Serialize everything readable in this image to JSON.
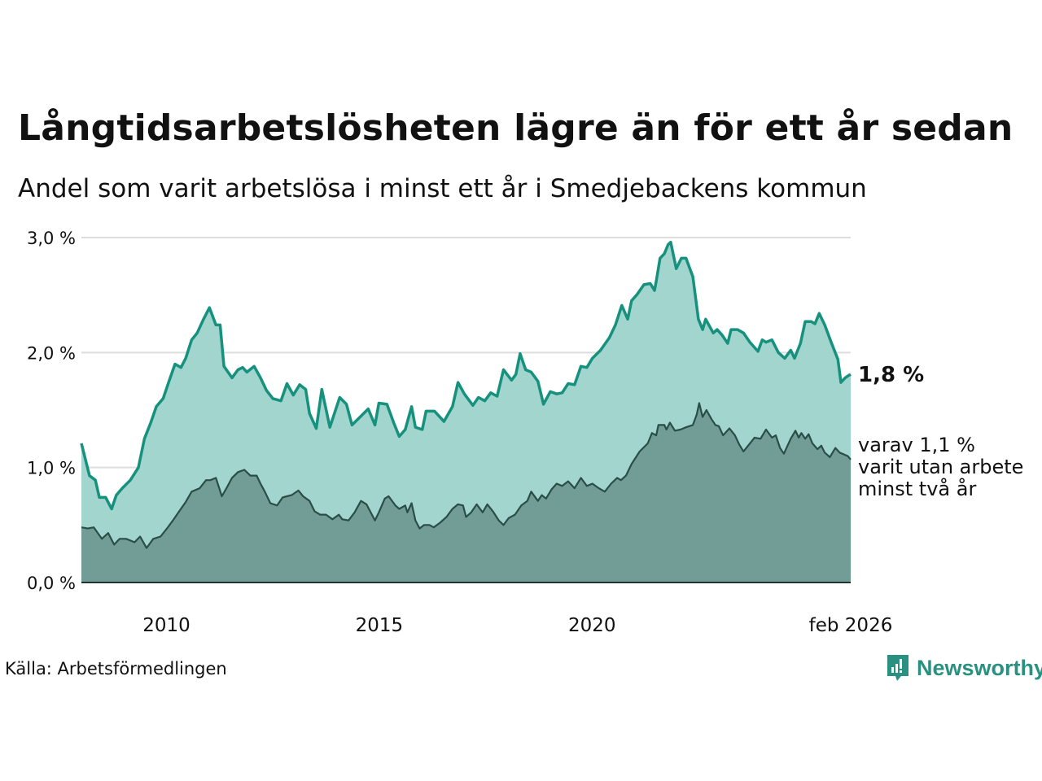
{
  "header": {
    "title": "Långtidsarbetslösheten lägre än för ett år sedan",
    "subtitle": "Andel som varit arbetslösa i minst ett år i Smedjebackens kommun"
  },
  "footer": {
    "source": "Källa: Arbetsförmedlingen",
    "logo_text": "Newsworthy"
  },
  "colors": {
    "total_line": "#16917d",
    "total_fill": "#a3d5cf",
    "long_line": "#2b4d48",
    "long_fill": "#729d97",
    "grid": "#dddddd"
  },
  "chart_data": {
    "type": "area",
    "title": "Långtidsarbetslösheten lägre än för ett år sedan",
    "xlabel": "",
    "ylabel": "",
    "xlim": [
      2008.0,
      2026.08
    ],
    "ylim": [
      0,
      3
    ],
    "yticks": [
      {
        "v": 0,
        "label": "0,0 %"
      },
      {
        "v": 1,
        "label": "1,0 %"
      },
      {
        "v": 2,
        "label": "2,0 %"
      },
      {
        "v": 3,
        "label": "3,0 %"
      }
    ],
    "xticks": [
      {
        "v": 2010,
        "label": "2010"
      },
      {
        "v": 2015,
        "label": "2015"
      },
      {
        "v": 2020,
        "label": "2020"
      },
      {
        "v": 2026.08,
        "label": "feb 2026"
      }
    ],
    "grid": true,
    "annotations": {
      "total_last": "1,8 %",
      "long_line1": "varav 1,1 %",
      "long_line2": "varit utan arbete",
      "long_line3": "minst två år"
    },
    "series": [
      {
        "name": "Arbetslösa minst ett år",
        "points": [
          [
            2008.0,
            1.21
          ],
          [
            2008.19,
            0.93
          ],
          [
            2008.33,
            0.89
          ],
          [
            2008.42,
            0.74
          ],
          [
            2008.57,
            0.74
          ],
          [
            2008.71,
            0.64
          ],
          [
            2008.82,
            0.76
          ],
          [
            2008.96,
            0.82
          ],
          [
            2009.15,
            0.89
          ],
          [
            2009.34,
            1.0
          ],
          [
            2009.48,
            1.25
          ],
          [
            2009.63,
            1.39
          ],
          [
            2009.76,
            1.53
          ],
          [
            2009.92,
            1.6
          ],
          [
            2010.05,
            1.74
          ],
          [
            2010.2,
            1.9
          ],
          [
            2010.34,
            1.87
          ],
          [
            2010.45,
            1.95
          ],
          [
            2010.59,
            2.11
          ],
          [
            2010.72,
            2.17
          ],
          [
            2010.87,
            2.29
          ],
          [
            2011.01,
            2.39
          ],
          [
            2011.16,
            2.24
          ],
          [
            2011.26,
            2.24
          ],
          [
            2011.35,
            1.88
          ],
          [
            2011.54,
            1.78
          ],
          [
            2011.68,
            1.85
          ],
          [
            2011.79,
            1.87
          ],
          [
            2011.89,
            1.83
          ],
          [
            2012.06,
            1.88
          ],
          [
            2012.21,
            1.78
          ],
          [
            2012.35,
            1.67
          ],
          [
            2012.5,
            1.6
          ],
          [
            2012.69,
            1.58
          ],
          [
            2012.83,
            1.73
          ],
          [
            2012.98,
            1.63
          ],
          [
            2013.13,
            1.72
          ],
          [
            2013.27,
            1.68
          ],
          [
            2013.36,
            1.47
          ],
          [
            2013.52,
            1.34
          ],
          [
            2013.65,
            1.68
          ],
          [
            2013.84,
            1.35
          ],
          [
            2014.07,
            1.61
          ],
          [
            2014.23,
            1.55
          ],
          [
            2014.36,
            1.37
          ],
          [
            2014.55,
            1.44
          ],
          [
            2014.74,
            1.51
          ],
          [
            2014.9,
            1.37
          ],
          [
            2014.99,
            1.56
          ],
          [
            2015.18,
            1.55
          ],
          [
            2015.34,
            1.39
          ],
          [
            2015.47,
            1.27
          ],
          [
            2015.61,
            1.33
          ],
          [
            2015.76,
            1.53
          ],
          [
            2015.85,
            1.35
          ],
          [
            2016.01,
            1.33
          ],
          [
            2016.1,
            1.49
          ],
          [
            2016.3,
            1.49
          ],
          [
            2016.52,
            1.4
          ],
          [
            2016.72,
            1.53
          ],
          [
            2016.85,
            1.74
          ],
          [
            2017.0,
            1.64
          ],
          [
            2017.2,
            1.54
          ],
          [
            2017.33,
            1.61
          ],
          [
            2017.48,
            1.58
          ],
          [
            2017.62,
            1.65
          ],
          [
            2017.77,
            1.62
          ],
          [
            2017.92,
            1.85
          ],
          [
            2018.11,
            1.76
          ],
          [
            2018.21,
            1.81
          ],
          [
            2018.31,
            1.99
          ],
          [
            2018.44,
            1.85
          ],
          [
            2018.57,
            1.83
          ],
          [
            2018.73,
            1.75
          ],
          [
            2018.86,
            1.55
          ],
          [
            2019.02,
            1.66
          ],
          [
            2019.17,
            1.64
          ],
          [
            2019.3,
            1.65
          ],
          [
            2019.44,
            1.73
          ],
          [
            2019.59,
            1.72
          ],
          [
            2019.74,
            1.88
          ],
          [
            2019.88,
            1.87
          ],
          [
            2020.01,
            1.95
          ],
          [
            2020.2,
            2.02
          ],
          [
            2020.41,
            2.13
          ],
          [
            2020.55,
            2.24
          ],
          [
            2020.7,
            2.41
          ],
          [
            2020.84,
            2.29
          ],
          [
            2020.93,
            2.45
          ],
          [
            2021.07,
            2.51
          ],
          [
            2021.22,
            2.59
          ],
          [
            2021.37,
            2.6
          ],
          [
            2021.47,
            2.54
          ],
          [
            2021.51,
            2.62
          ],
          [
            2021.6,
            2.82
          ],
          [
            2021.7,
            2.86
          ],
          [
            2021.79,
            2.94
          ],
          [
            2021.85,
            2.96
          ],
          [
            2021.98,
            2.73
          ],
          [
            2022.1,
            2.82
          ],
          [
            2022.21,
            2.82
          ],
          [
            2022.37,
            2.66
          ],
          [
            2022.5,
            2.29
          ],
          [
            2022.6,
            2.2
          ],
          [
            2022.67,
            2.29
          ],
          [
            2022.85,
            2.17
          ],
          [
            2022.94,
            2.2
          ],
          [
            2023.06,
            2.15
          ],
          [
            2023.19,
            2.08
          ],
          [
            2023.27,
            2.2
          ],
          [
            2023.42,
            2.2
          ],
          [
            2023.56,
            2.17
          ],
          [
            2023.71,
            2.09
          ],
          [
            2023.9,
            2.01
          ],
          [
            2024.0,
            2.11
          ],
          [
            2024.09,
            2.09
          ],
          [
            2024.23,
            2.11
          ],
          [
            2024.38,
            2.0
          ],
          [
            2024.53,
            1.95
          ],
          [
            2024.67,
            2.02
          ],
          [
            2024.76,
            1.95
          ],
          [
            2024.9,
            2.08
          ],
          [
            2025.01,
            2.27
          ],
          [
            2025.15,
            2.27
          ],
          [
            2025.24,
            2.25
          ],
          [
            2025.34,
            2.34
          ],
          [
            2025.47,
            2.24
          ],
          [
            2025.62,
            2.09
          ],
          [
            2025.78,
            1.94
          ],
          [
            2025.85,
            1.74
          ],
          [
            2025.95,
            1.78
          ],
          [
            2026.03,
            1.8
          ],
          [
            2026.08,
            1.81
          ]
        ]
      },
      {
        "name": "varav minst två år",
        "points": [
          [
            2008.0,
            0.48
          ],
          [
            2008.15,
            0.47
          ],
          [
            2008.29,
            0.48
          ],
          [
            2008.48,
            0.38
          ],
          [
            2008.63,
            0.43
          ],
          [
            2008.77,
            0.33
          ],
          [
            2008.9,
            0.38
          ],
          [
            2009.05,
            0.38
          ],
          [
            2009.25,
            0.35
          ],
          [
            2009.38,
            0.4
          ],
          [
            2009.53,
            0.3
          ],
          [
            2009.69,
            0.38
          ],
          [
            2009.86,
            0.4
          ],
          [
            2010.01,
            0.47
          ],
          [
            2010.15,
            0.54
          ],
          [
            2010.3,
            0.62
          ],
          [
            2010.45,
            0.7
          ],
          [
            2010.59,
            0.79
          ],
          [
            2010.78,
            0.82
          ],
          [
            2010.93,
            0.89
          ],
          [
            2011.03,
            0.89
          ],
          [
            2011.16,
            0.91
          ],
          [
            2011.3,
            0.75
          ],
          [
            2011.41,
            0.82
          ],
          [
            2011.54,
            0.91
          ],
          [
            2011.68,
            0.96
          ],
          [
            2011.83,
            0.98
          ],
          [
            2011.97,
            0.93
          ],
          [
            2012.12,
            0.93
          ],
          [
            2012.21,
            0.86
          ],
          [
            2012.31,
            0.79
          ],
          [
            2012.44,
            0.69
          ],
          [
            2012.6,
            0.67
          ],
          [
            2012.73,
            0.74
          ],
          [
            2012.83,
            0.75
          ],
          [
            2012.94,
            0.76
          ],
          [
            2013.1,
            0.8
          ],
          [
            2013.21,
            0.75
          ],
          [
            2013.36,
            0.71
          ],
          [
            2013.48,
            0.62
          ],
          [
            2013.61,
            0.59
          ],
          [
            2013.75,
            0.59
          ],
          [
            2013.9,
            0.55
          ],
          [
            2014.05,
            0.59
          ],
          [
            2014.13,
            0.55
          ],
          [
            2014.28,
            0.54
          ],
          [
            2014.42,
            0.61
          ],
          [
            2014.57,
            0.71
          ],
          [
            2014.7,
            0.68
          ],
          [
            2014.9,
            0.54
          ],
          [
            2014.99,
            0.61
          ],
          [
            2015.13,
            0.73
          ],
          [
            2015.22,
            0.75
          ],
          [
            2015.38,
            0.67
          ],
          [
            2015.47,
            0.64
          ],
          [
            2015.61,
            0.67
          ],
          [
            2015.66,
            0.61
          ],
          [
            2015.76,
            0.69
          ],
          [
            2015.85,
            0.54
          ],
          [
            2015.95,
            0.47
          ],
          [
            2016.05,
            0.5
          ],
          [
            2016.18,
            0.5
          ],
          [
            2016.28,
            0.48
          ],
          [
            2016.43,
            0.52
          ],
          [
            2016.58,
            0.57
          ],
          [
            2016.72,
            0.64
          ],
          [
            2016.85,
            0.68
          ],
          [
            2016.97,
            0.67
          ],
          [
            2017.04,
            0.57
          ],
          [
            2017.16,
            0.61
          ],
          [
            2017.29,
            0.68
          ],
          [
            2017.43,
            0.61
          ],
          [
            2017.54,
            0.68
          ],
          [
            2017.67,
            0.62
          ],
          [
            2017.81,
            0.54
          ],
          [
            2017.92,
            0.5
          ],
          [
            2018.04,
            0.56
          ],
          [
            2018.19,
            0.59
          ],
          [
            2018.34,
            0.67
          ],
          [
            2018.48,
            0.71
          ],
          [
            2018.57,
            0.79
          ],
          [
            2018.73,
            0.71
          ],
          [
            2018.82,
            0.76
          ],
          [
            2018.92,
            0.73
          ],
          [
            2019.05,
            0.81
          ],
          [
            2019.17,
            0.86
          ],
          [
            2019.3,
            0.84
          ],
          [
            2019.44,
            0.88
          ],
          [
            2019.59,
            0.82
          ],
          [
            2019.74,
            0.91
          ],
          [
            2019.88,
            0.84
          ],
          [
            2020.01,
            0.86
          ],
          [
            2020.16,
            0.82
          ],
          [
            2020.3,
            0.79
          ],
          [
            2020.45,
            0.86
          ],
          [
            2020.59,
            0.91
          ],
          [
            2020.68,
            0.89
          ],
          [
            2020.8,
            0.93
          ],
          [
            2020.93,
            1.03
          ],
          [
            2021.12,
            1.14
          ],
          [
            2021.31,
            1.21
          ],
          [
            2021.41,
            1.3
          ],
          [
            2021.51,
            1.28
          ],
          [
            2021.56,
            1.37
          ],
          [
            2021.7,
            1.37
          ],
          [
            2021.75,
            1.33
          ],
          [
            2021.83,
            1.39
          ],
          [
            2021.95,
            1.32
          ],
          [
            2022.08,
            1.33
          ],
          [
            2022.21,
            1.35
          ],
          [
            2022.37,
            1.37
          ],
          [
            2022.46,
            1.46
          ],
          [
            2022.52,
            1.56
          ],
          [
            2022.6,
            1.44
          ],
          [
            2022.69,
            1.5
          ],
          [
            2022.81,
            1.42
          ],
          [
            2022.9,
            1.37
          ],
          [
            2022.98,
            1.36
          ],
          [
            2023.08,
            1.28
          ],
          [
            2023.23,
            1.34
          ],
          [
            2023.36,
            1.28
          ],
          [
            2023.46,
            1.2
          ],
          [
            2023.56,
            1.14
          ],
          [
            2023.67,
            1.19
          ],
          [
            2023.82,
            1.26
          ],
          [
            2023.96,
            1.25
          ],
          [
            2024.09,
            1.33
          ],
          [
            2024.23,
            1.26
          ],
          [
            2024.32,
            1.28
          ],
          [
            2024.42,
            1.17
          ],
          [
            2024.51,
            1.12
          ],
          [
            2024.67,
            1.25
          ],
          [
            2024.78,
            1.32
          ],
          [
            2024.86,
            1.26
          ],
          [
            2024.92,
            1.3
          ],
          [
            2025.01,
            1.25
          ],
          [
            2025.09,
            1.29
          ],
          [
            2025.18,
            1.21
          ],
          [
            2025.3,
            1.16
          ],
          [
            2025.39,
            1.19
          ],
          [
            2025.47,
            1.13
          ],
          [
            2025.59,
            1.09
          ],
          [
            2025.72,
            1.17
          ],
          [
            2025.82,
            1.13
          ],
          [
            2026.01,
            1.1
          ],
          [
            2026.08,
            1.07
          ]
        ]
      }
    ]
  }
}
